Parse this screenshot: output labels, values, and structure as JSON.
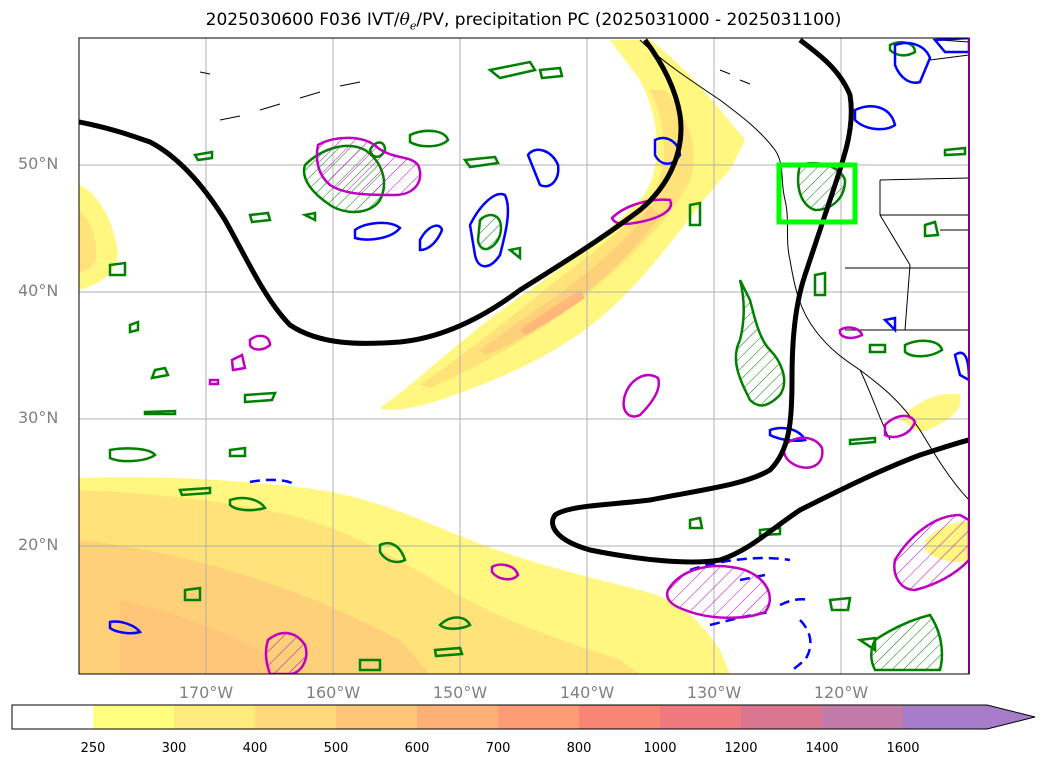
{
  "title": {
    "prefix": "2025030600 F036 IVT/",
    "theta": "θ",
    "theta_sub": "e",
    "suffix": "/PV, precipitation PC (2025031000 - 2025031100)"
  },
  "lat_labels": [
    "50°N",
    "40°N",
    "30°N",
    "20°N"
  ],
  "lon_labels": [
    "170°W",
    "160°W",
    "150°W",
    "140°W",
    "130°W",
    "120°W"
  ],
  "colorbar": {
    "tick_labels": [
      "250",
      "300",
      "400",
      "500",
      "600",
      "700",
      "800",
      "1000",
      "1200",
      "1400",
      "1600"
    ],
    "colors": [
      "#ffffff",
      "#ffff7f",
      "#ffea7c",
      "#ffd97a",
      "#ffc579",
      "#ffb077",
      "#fe9c75",
      "#f98575",
      "#ee7a7f",
      "#d9758f",
      "#c27aa8",
      "#a77cc8"
    ]
  },
  "colors": {
    "ivt_fill_1": "#fff780",
    "ivt_fill_2": "#ffe27a",
    "ivt_fill_3": "#ffd07a",
    "ivt_fill_4": "#ffb77a",
    "pv_contour": "#000000",
    "theta_e_contour": "#0000ff",
    "precip_pc_contour": "#008000",
    "pv_anomaly_contour": "#c000c0",
    "highlight_box": "#00ff00",
    "gridline": "#b0b0b0",
    "coastline": "#000000"
  }
}
